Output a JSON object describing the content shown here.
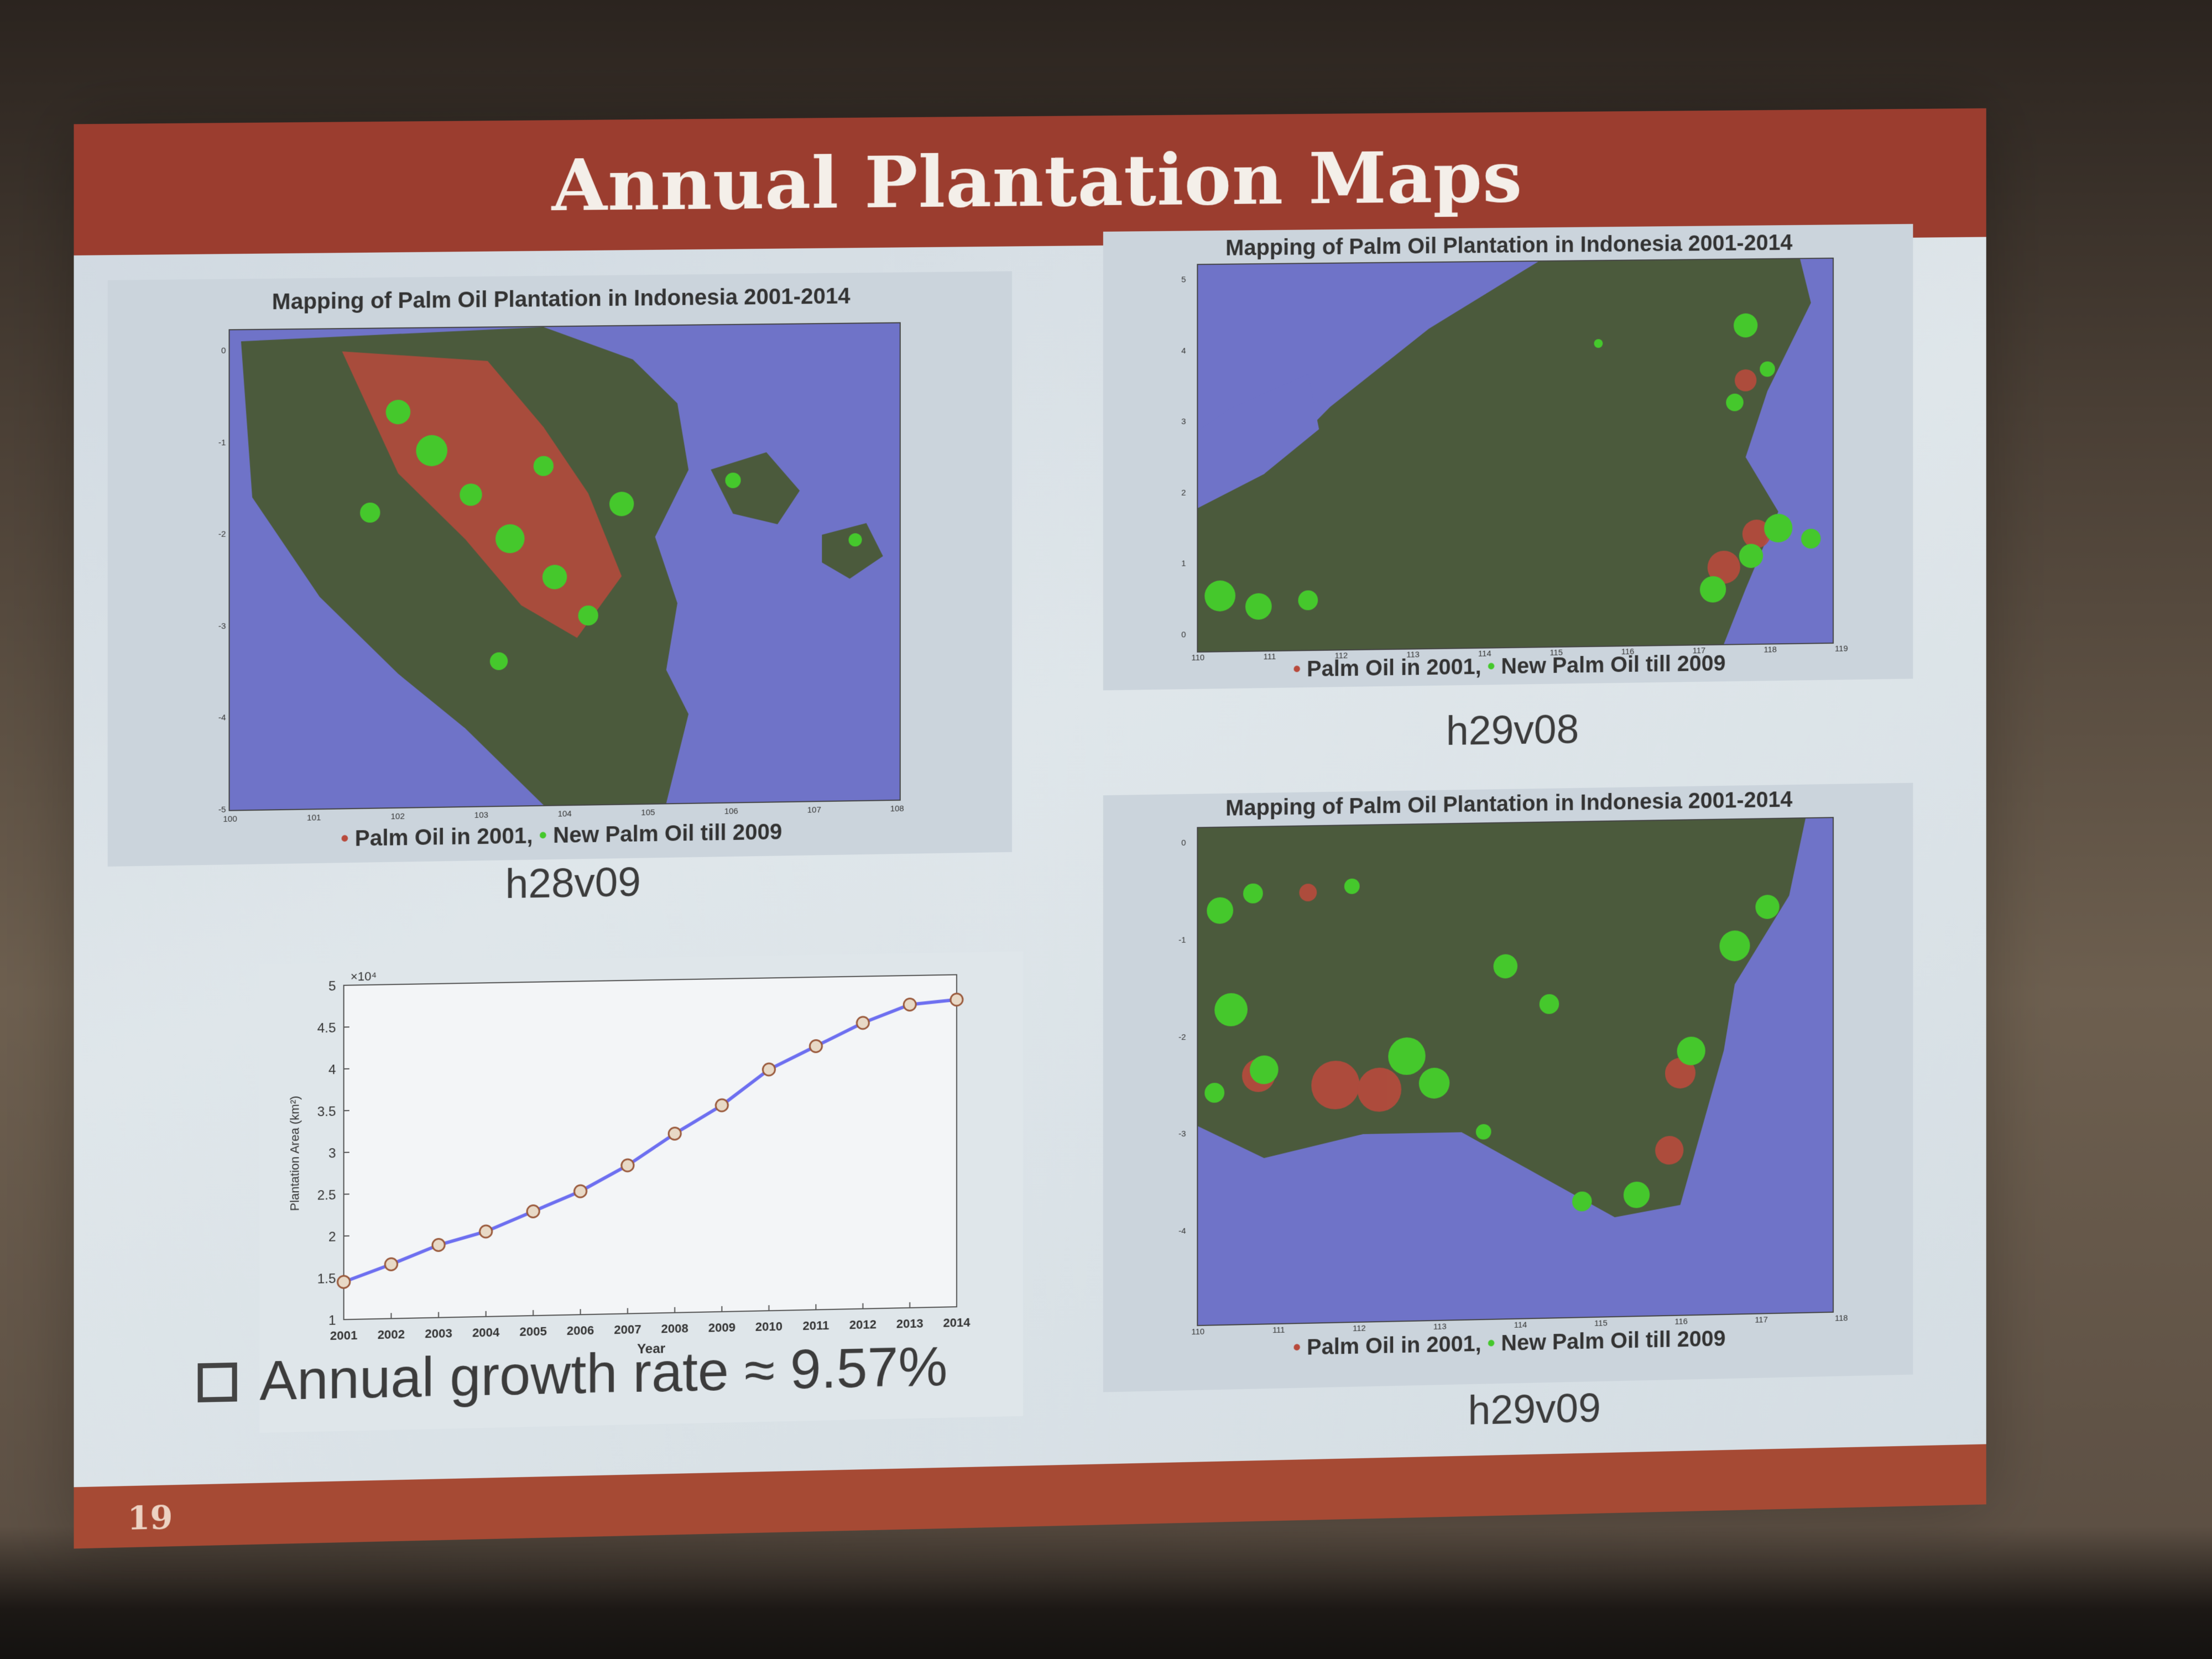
{
  "slide": {
    "title": "Annual Plantation Maps",
    "number": "19",
    "bullet": "Annual growth rate ≈ 9.57%"
  },
  "maps": [
    {
      "title": "Mapping of Palm Oil Plantation in Indonesia 2001-2014",
      "legend_a": "Palm Oil in 2001,",
      "legend_b": "New Palm Oil till 2009",
      "tile": "h28v09",
      "x_ticks": [
        "100",
        "101",
        "102",
        "103",
        "104",
        "105",
        "106",
        "107",
        "108"
      ],
      "y_ticks": [
        "0",
        "-1",
        "-2",
        "-3",
        "-4",
        "-5"
      ]
    },
    {
      "title": "Mapping of Palm Oil Plantation in Indonesia 2001-2014",
      "legend_a": "Palm Oil in 2001,",
      "legend_b": "New Palm Oil till 2009",
      "tile": "h29v08",
      "x_ticks": [
        "110",
        "111",
        "112",
        "113",
        "114",
        "115",
        "116",
        "117",
        "118",
        "119"
      ],
      "y_ticks": [
        "5",
        "4",
        "3",
        "2",
        "1",
        "0"
      ]
    },
    {
      "title": "Mapping of Palm Oil Plantation in Indonesia 2001-2014",
      "legend_a": "Palm Oil in 2001,",
      "legend_b": "New Palm Oil till 2009",
      "tile": "h29v09",
      "x_ticks": [
        "110",
        "111",
        "112",
        "113",
        "114",
        "115",
        "116",
        "117",
        "118"
      ],
      "y_ticks": [
        "0",
        "-1",
        "-2",
        "-3",
        "-4"
      ]
    }
  ],
  "colors": {
    "ocean": "#6f73c8",
    "land": "#4b5a3c",
    "palm_2001": "#b84a3c",
    "palm_new": "#45c82c",
    "title_bar": "#9b3d2f"
  },
  "chart_data": {
    "type": "line",
    "x": [
      "2001",
      "2002",
      "2003",
      "2004",
      "2005",
      "2006",
      "2007",
      "2008",
      "2009",
      "2010",
      "2011",
      "2012",
      "2013",
      "2014"
    ],
    "series": [
      {
        "values": [
          1.45,
          1.65,
          1.87,
          2.02,
          2.25,
          2.48,
          2.78,
          3.15,
          3.48,
          3.9,
          4.17,
          4.44,
          4.65,
          4.7
        ]
      }
    ],
    "xlabel": "Year",
    "ylabel": "Plantation Area (km²)",
    "scale_label": "×10⁴",
    "ylim": [
      1,
      5
    ],
    "y_ticks": [
      "1",
      "1.5",
      "2",
      "2.5",
      "3",
      "3.5",
      "4",
      "4.5",
      "5"
    ],
    "grid": false
  }
}
